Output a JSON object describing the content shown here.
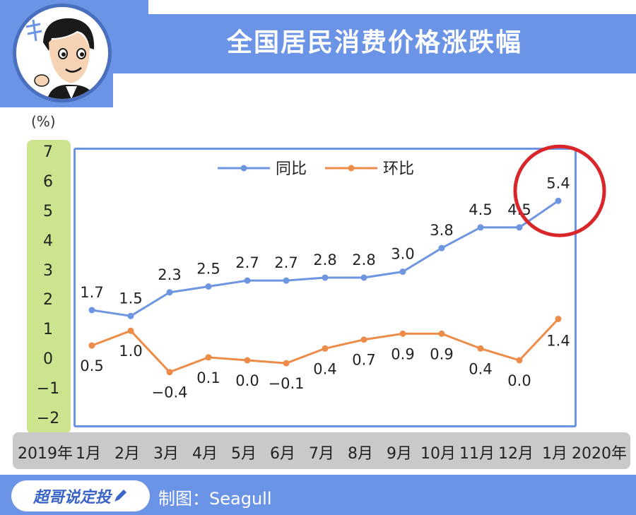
{
  "header": {
    "title": "全国居民消费价格涨跌幅"
  },
  "footer": {
    "brand": "超哥说定投",
    "credit": "制图：Seagull"
  },
  "colors": {
    "header": "#6b93e6",
    "yoy_line": "#6e96e0",
    "mom_line": "#ed8c48",
    "yaxis_bg": "#cde48f",
    "xaxis_bg": "#c9c9c9",
    "highlight_circle": "#d9262b"
  },
  "chart_data": {
    "type": "line",
    "unit_label": "(%)",
    "x_prefix": "2019年",
    "x_suffix": "2020年",
    "categories": [
      "1月",
      "2月",
      "3月",
      "4月",
      "5月",
      "6月",
      "7月",
      "8月",
      "9月",
      "10月",
      "11月",
      "12月",
      "1月"
    ],
    "ylim": [
      -2,
      7
    ],
    "yticks": [
      "7",
      "6",
      "5",
      "4",
      "3",
      "2",
      "1",
      "0",
      "−1",
      "−2"
    ],
    "legend_position": "top-center",
    "series": [
      {
        "name": "同比",
        "values": [
          1.7,
          1.5,
          2.3,
          2.5,
          2.7,
          2.7,
          2.8,
          2.8,
          3.0,
          3.8,
          4.5,
          4.5,
          5.4
        ],
        "labels": [
          "1.7",
          "1.5",
          "2.3",
          "2.5",
          "2.7",
          "2.7",
          "2.8",
          "2.8",
          "3.0",
          "3.8",
          "4.5",
          "4.5",
          "5.4"
        ]
      },
      {
        "name": "环比",
        "values": [
          0.5,
          1.0,
          -0.4,
          0.1,
          0.0,
          -0.1,
          0.4,
          0.7,
          0.9,
          0.9,
          0.4,
          0.0,
          1.4
        ],
        "labels": [
          "0.5",
          "1.0",
          "−0.4",
          "0.1",
          "0.0",
          "−0.1",
          "0.4",
          "0.7",
          "0.9",
          "0.9",
          "0.4",
          "0.0",
          "1.4"
        ]
      }
    ],
    "highlight": "5.4"
  }
}
